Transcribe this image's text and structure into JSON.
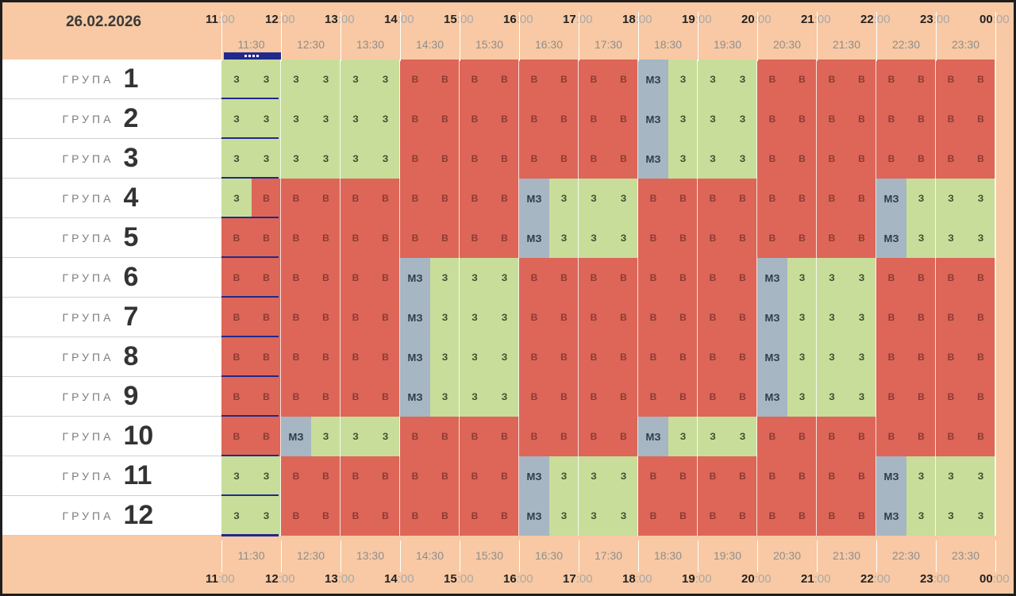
{
  "date": "26.02.2026",
  "hours": [
    "11",
    "12",
    "13",
    "14",
    "15",
    "16",
    "17",
    "18",
    "19",
    "20",
    "21",
    "22",
    "23",
    "00"
  ],
  "hour_minutes": ":00",
  "half_hours": [
    "11:30",
    "12:30",
    "13:30",
    "14:30",
    "15:30",
    "16:30",
    "17:30",
    "18:30",
    "19:30",
    "20:30",
    "21:30",
    "22:30",
    "23:30"
  ],
  "group_word": "ГРУПА",
  "legend": {
    "z": "З",
    "v": "В",
    "mz": "МЗ"
  },
  "colors": {
    "z": "#c9dd9b",
    "v": "#dd6658",
    "mz": "#a6b6c3",
    "background": "#f8c9a4",
    "now": "#1f2a8c"
  },
  "groups": [
    {
      "num": "1",
      "slots": [
        "z",
        "z",
        "z",
        "z",
        "z",
        "z",
        "v",
        "v",
        "v",
        "v",
        "v",
        "v",
        "v",
        "v",
        "mz",
        "z",
        "z",
        "z",
        "v",
        "v",
        "v",
        "v",
        "v",
        "v",
        "v",
        "v"
      ]
    },
    {
      "num": "2",
      "slots": [
        "z",
        "z",
        "z",
        "z",
        "z",
        "z",
        "v",
        "v",
        "v",
        "v",
        "v",
        "v",
        "v",
        "v",
        "mz",
        "z",
        "z",
        "z",
        "v",
        "v",
        "v",
        "v",
        "v",
        "v",
        "v",
        "v"
      ]
    },
    {
      "num": "3",
      "slots": [
        "z",
        "z",
        "z",
        "z",
        "z",
        "z",
        "v",
        "v",
        "v",
        "v",
        "v",
        "v",
        "v",
        "v",
        "mz",
        "z",
        "z",
        "z",
        "v",
        "v",
        "v",
        "v",
        "v",
        "v",
        "v",
        "v"
      ]
    },
    {
      "num": "4",
      "slots": [
        "z",
        "v",
        "v",
        "v",
        "v",
        "v",
        "v",
        "v",
        "v",
        "v",
        "mz",
        "z",
        "z",
        "z",
        "v",
        "v",
        "v",
        "v",
        "v",
        "v",
        "v",
        "v",
        "mz",
        "z",
        "z",
        "z"
      ]
    },
    {
      "num": "5",
      "slots": [
        "v",
        "v",
        "v",
        "v",
        "v",
        "v",
        "v",
        "v",
        "v",
        "v",
        "mz",
        "z",
        "z",
        "z",
        "v",
        "v",
        "v",
        "v",
        "v",
        "v",
        "v",
        "v",
        "mz",
        "z",
        "z",
        "z"
      ]
    },
    {
      "num": "6",
      "slots": [
        "v",
        "v",
        "v",
        "v",
        "v",
        "v",
        "mz",
        "z",
        "z",
        "z",
        "v",
        "v",
        "v",
        "v",
        "v",
        "v",
        "v",
        "v",
        "mz",
        "z",
        "z",
        "z",
        "v",
        "v",
        "v",
        "v"
      ]
    },
    {
      "num": "7",
      "slots": [
        "v",
        "v",
        "v",
        "v",
        "v",
        "v",
        "mz",
        "z",
        "z",
        "z",
        "v",
        "v",
        "v",
        "v",
        "v",
        "v",
        "v",
        "v",
        "mz",
        "z",
        "z",
        "z",
        "v",
        "v",
        "v",
        "v"
      ]
    },
    {
      "num": "8",
      "slots": [
        "v",
        "v",
        "v",
        "v",
        "v",
        "v",
        "mz",
        "z",
        "z",
        "z",
        "v",
        "v",
        "v",
        "v",
        "v",
        "v",
        "v",
        "v",
        "mz",
        "z",
        "z",
        "z",
        "v",
        "v",
        "v",
        "v"
      ]
    },
    {
      "num": "9",
      "slots": [
        "v",
        "v",
        "v",
        "v",
        "v",
        "v",
        "mz",
        "z",
        "z",
        "z",
        "v",
        "v",
        "v",
        "v",
        "v",
        "v",
        "v",
        "v",
        "mz",
        "z",
        "z",
        "z",
        "v",
        "v",
        "v",
        "v"
      ]
    },
    {
      "num": "10",
      "slots": [
        "v",
        "v",
        "mz",
        "z",
        "z",
        "z",
        "v",
        "v",
        "v",
        "v",
        "v",
        "v",
        "v",
        "v",
        "mz",
        "z",
        "z",
        "z",
        "v",
        "v",
        "v",
        "v",
        "v",
        "v",
        "v",
        "v"
      ]
    },
    {
      "num": "11",
      "slots": [
        "z",
        "z",
        "v",
        "v",
        "v",
        "v",
        "v",
        "v",
        "v",
        "v",
        "mz",
        "z",
        "z",
        "z",
        "v",
        "v",
        "v",
        "v",
        "v",
        "v",
        "v",
        "v",
        "mz",
        "z",
        "z",
        "z"
      ]
    },
    {
      "num": "12",
      "slots": [
        "z",
        "z",
        "v",
        "v",
        "v",
        "v",
        "v",
        "v",
        "v",
        "v",
        "mz",
        "z",
        "z",
        "z",
        "v",
        "v",
        "v",
        "v",
        "v",
        "v",
        "v",
        "v",
        "mz",
        "z",
        "z",
        "z"
      ]
    }
  ]
}
